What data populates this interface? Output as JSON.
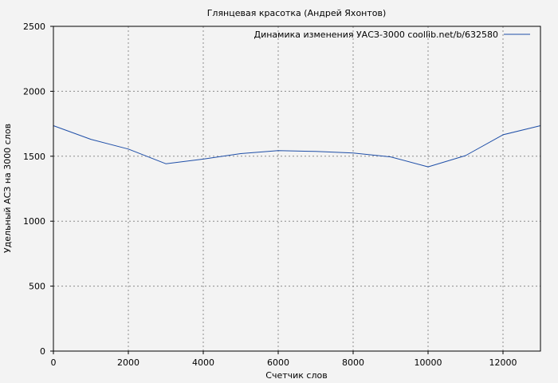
{
  "chart_data": {
    "type": "line",
    "title": "Глянцевая красотка (Андрей Яхонтов)",
    "xlabel": "Счетчик слов",
    "ylabel": "Удельный АСЗ на 3000 слов",
    "xlim": [
      0,
      13000
    ],
    "ylim": [
      0,
      2500
    ],
    "x_ticks": [
      0,
      2000,
      4000,
      6000,
      8000,
      10000,
      12000
    ],
    "y_ticks": [
      0,
      500,
      1000,
      1500,
      2000,
      2500
    ],
    "grid": true,
    "legend_position": "top-right",
    "series": [
      {
        "name": "Динамика изменения УАСЗ-3000 coollib.net/b/632580",
        "color": "#1f4fa8",
        "x": [
          0,
          1000,
          2000,
          3000,
          4000,
          5000,
          6000,
          7000,
          8000,
          9000,
          10000,
          11000,
          12000,
          13000
        ],
        "y": [
          1735,
          1630,
          1555,
          1442,
          1478,
          1520,
          1543,
          1537,
          1525,
          1495,
          1418,
          1505,
          1665,
          1735
        ]
      }
    ]
  }
}
